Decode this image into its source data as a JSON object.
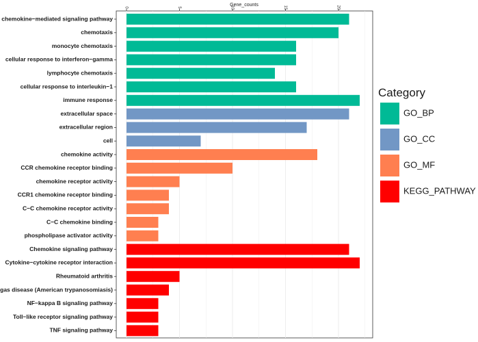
{
  "chart_data": {
    "type": "bar",
    "orientation": "horizontal",
    "xlabel": "Gene_counts",
    "xlim": [
      0,
      23
    ],
    "xticks": [
      0,
      5,
      10,
      15,
      20
    ],
    "grid": true,
    "legend": {
      "title": "Category",
      "placement": "right",
      "entries": [
        {
          "name": "GO_BP",
          "color": "#00ba96"
        },
        {
          "name": "GO_CC",
          "color": "#7297c5"
        },
        {
          "name": "GO_MF",
          "color": "#ff7f50"
        },
        {
          "name": "KEGG_PATHWAY",
          "color": "#ff0000"
        }
      ]
    },
    "categories": [
      "chemokine−mediated signaling pathway",
      "chemotaxis",
      "monocyte chemotaxis",
      "cellular response to interferon−gamma",
      "lymphocyte chemotaxis",
      "cellular response to interleukin−1",
      "immune response",
      "extracellular space",
      "extracellular region",
      "cell",
      "chemokine activity",
      "CCR chemokine receptor binding",
      "chemokine receptor activity",
      "CCR1 chemokine receptor binding",
      "C−C chemokine receptor activity",
      "C−C chemokine binding",
      "phospholipase activator activity",
      "Chemokine signaling pathway",
      "Cytokine−cytokine receptor interaction",
      "Rheumatoid arthritis",
      "Chagas disease (American trypanosomiasis)",
      "NF−kappa B signaling pathway",
      "Toll−like receptor signaling pathway",
      "TNF signaling pathway"
    ],
    "values": [
      21,
      20,
      16,
      16,
      14,
      16,
      22,
      21,
      17,
      7,
      18,
      10,
      5,
      4,
      4,
      3,
      3,
      21,
      22,
      5,
      4,
      3,
      3,
      3
    ],
    "groups": [
      "GO_BP",
      "GO_BP",
      "GO_BP",
      "GO_BP",
      "GO_BP",
      "GO_BP",
      "GO_BP",
      "GO_CC",
      "GO_CC",
      "GO_CC",
      "GO_MF",
      "GO_MF",
      "GO_MF",
      "GO_MF",
      "GO_MF",
      "GO_MF",
      "GO_MF",
      "KEGG_PATHWAY",
      "KEGG_PATHWAY",
      "KEGG_PATHWAY",
      "KEGG_PATHWAY",
      "KEGG_PATHWAY",
      "KEGG_PATHWAY",
      "KEGG_PATHWAY"
    ]
  }
}
